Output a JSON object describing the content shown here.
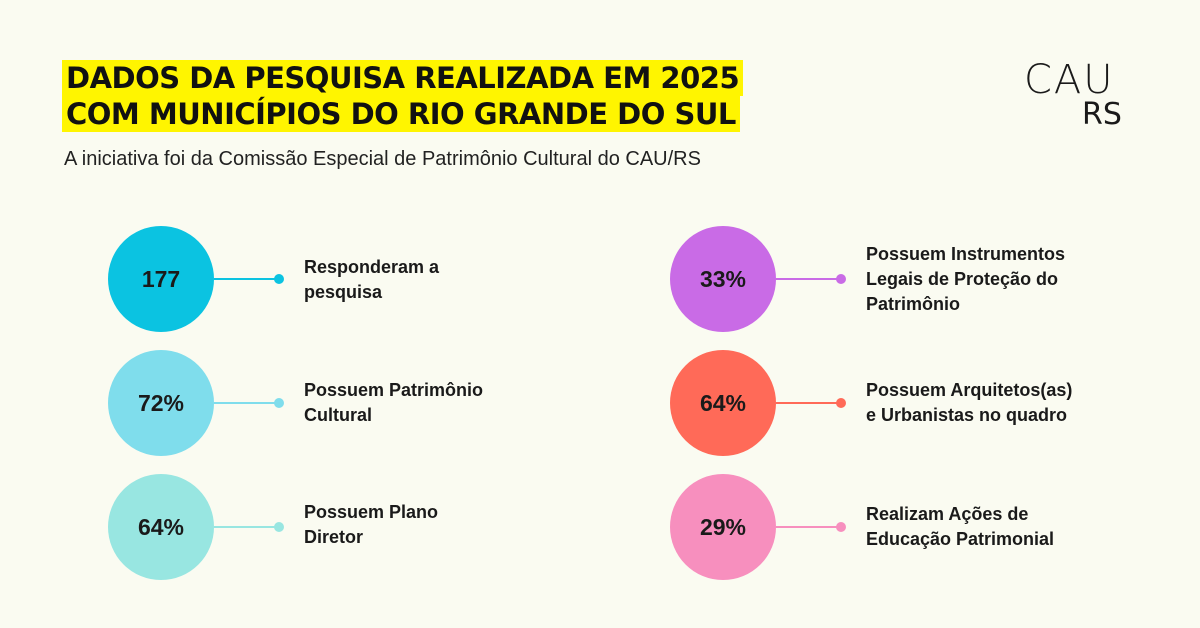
{
  "header": {
    "title_line1": "DADOS DA PESQUISA REALIZADA EM 2025",
    "title_line2": "COM  MUNICÍPIOS DO RIO GRANDE DO SUL",
    "subtitle": "A iniciativa foi da Comissão Especial de Patrimônio Cultural do CAU/RS",
    "highlight_color": "#FFF500"
  },
  "logo": {
    "top": "CAU",
    "bottom": "RS"
  },
  "stats": [
    {
      "value": "177",
      "label_lines": [
        "Responderam a",
        "pesquisa"
      ],
      "color": "#0BC3E1",
      "icon": "circle-badge"
    },
    {
      "value": "72%",
      "label_lines": [
        "Possuem Patrimônio",
        "Cultural"
      ],
      "color": "#7FDDEC",
      "icon": "circle-badge"
    },
    {
      "value": "64%",
      "label_lines": [
        "Possuem Plano",
        "Diretor"
      ],
      "color": "#98E6E1",
      "icon": "circle-badge"
    },
    {
      "value": "33%",
      "label_lines": [
        "Possuem Instrumentos",
        "Legais de Proteção do",
        "Patrimônio"
      ],
      "color": "#C96BE6",
      "icon": "circle-badge"
    },
    {
      "value": "64%",
      "label_lines": [
        "Possuem Arquitetos(as)",
        "e Urbanistas no quadro"
      ],
      "color": "#FF6A58",
      "icon": "circle-badge"
    },
    {
      "value": "29%",
      "label_lines": [
        "Realizam Ações de",
        "Educação Patrimonial"
      ],
      "color": "#F78FBE",
      "icon": "circle-badge"
    }
  ]
}
